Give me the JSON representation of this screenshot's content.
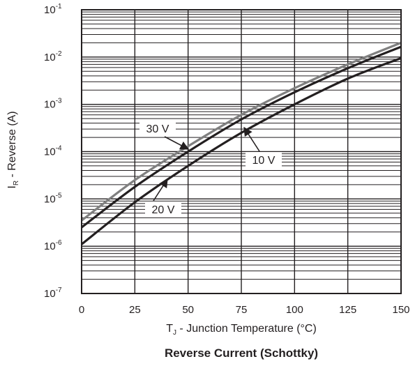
{
  "chart_data": {
    "type": "line",
    "title": "Reverse Current (Schottky)",
    "xlabel": {
      "main": "T",
      "sub": "J",
      "rest": " - Junction Temperature (°C)"
    },
    "ylabel": {
      "main": "I",
      "sub": "R",
      "rest": " - Reverse (A)"
    },
    "x_ticks": [
      "0",
      "25",
      "50",
      "75",
      "100",
      "125",
      "150"
    ],
    "y_ticks": [
      {
        "base": "10",
        "exp": "-1"
      },
      {
        "base": "10",
        "exp": "-2"
      },
      {
        "base": "10",
        "exp": "-3"
      },
      {
        "base": "10",
        "exp": "-4"
      },
      {
        "base": "10",
        "exp": "-5"
      },
      {
        "base": "10",
        "exp": "-6"
      },
      {
        "base": "10",
        "exp": "-7"
      }
    ],
    "xlim": [
      0,
      150
    ],
    "ylim": [
      1e-07,
      0.1
    ],
    "y_scale": "log",
    "grid": true,
    "series": [
      {
        "name": "30 V",
        "color": "#808080",
        "x": [
          0,
          25,
          50,
          75,
          100,
          125,
          150
        ],
        "y": [
          3.5e-06,
          2.5e-05,
          0.00013,
          0.0006,
          0.0022,
          0.007,
          0.02
        ]
      },
      {
        "name": "20 V",
        "color": "#231f20",
        "x": [
          0,
          25,
          50,
          75,
          100,
          125,
          150
        ],
        "y": [
          2.5e-06,
          1.8e-05,
          0.0001,
          0.00048,
          0.0018,
          0.0058,
          0.0165
        ]
      },
      {
        "name": "10 V",
        "color": "#231f20",
        "x": [
          0,
          25,
          50,
          75,
          100,
          125,
          150
        ],
        "y": [
          1.1e-06,
          8.5e-06,
          5e-05,
          0.00025,
          0.001,
          0.0035,
          0.0095
        ]
      }
    ],
    "annotations": [
      {
        "text": "30 V",
        "series": "30 V"
      },
      {
        "text": "20 V",
        "series": "20 V"
      },
      {
        "text": "10 V",
        "series": "10 V"
      }
    ]
  }
}
